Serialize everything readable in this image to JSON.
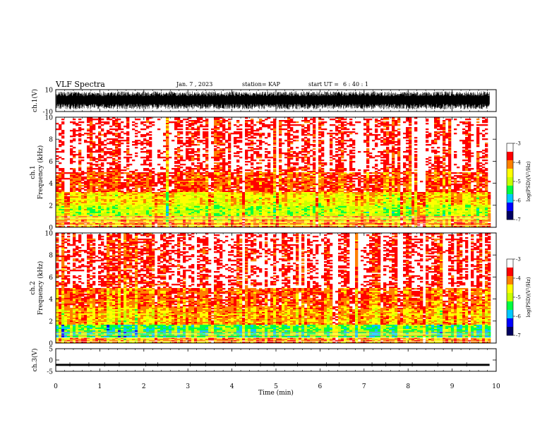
{
  "header": {
    "title": "VLF Spectra",
    "date": "Jan. 7 , 2023",
    "station": "station= KAP",
    "start_label": "start UT =",
    "start_time": "6 : 40 : 1"
  },
  "chart_data": [
    {
      "type": "line",
      "panel": "ch1-waveform",
      "ylabel": "ch.1(V)",
      "ylim": [
        -10,
        10
      ],
      "yticks": [
        "10",
        "-10"
      ],
      "xlim": [
        0,
        10
      ],
      "description_values": "dense noise-like waveform between about -8 and +8 V over 0–9.85 min"
    },
    {
      "type": "heatmap",
      "panel": "ch1-spectrogram",
      "ylabel": "ch.1 Frequency (kHz)",
      "ylim": [
        0,
        10
      ],
      "yticks": [
        "0",
        "2",
        "4",
        "6",
        "8",
        "10"
      ],
      "xlim": [
        0,
        10
      ],
      "data_extent_x": [
        0,
        9.85
      ],
      "log_psd_by_band": [
        {
          "f_khz": [
            0,
            0.6
          ],
          "level": -4.2
        },
        {
          "f_khz": [
            0.6,
            1.0
          ],
          "level": -4.6
        },
        {
          "f_khz": [
            1.0,
            2.0
          ],
          "level": -5.0
        },
        {
          "f_khz": [
            2.0,
            3.2
          ],
          "level": -4.5
        },
        {
          "f_khz": [
            3.2,
            5.0
          ],
          "level": -3.9
        },
        {
          "f_khz": [
            5.0,
            10.0
          ],
          "level": -3.4
        }
      ]
    },
    {
      "type": "heatmap",
      "panel": "ch2-spectrogram",
      "ylabel": "ch.2 Frequency (kHz)",
      "ylim": [
        0,
        10
      ],
      "yticks": [
        "0",
        "2",
        "4",
        "6",
        "8",
        "10"
      ],
      "xlim": [
        0,
        10
      ],
      "data_extent_x": [
        0,
        9.85
      ],
      "log_psd_by_band": [
        {
          "f_khz": [
            0,
            0.5
          ],
          "level": -4.1
        },
        {
          "f_khz": [
            0.5,
            1.7
          ],
          "level": -5.3
        },
        {
          "f_khz": [
            1.7,
            3.2
          ],
          "level": -4.3
        },
        {
          "f_khz": [
            3.2,
            5.0
          ],
          "level": -3.9
        },
        {
          "f_khz": [
            5.0,
            10.0
          ],
          "level": -3.4
        }
      ]
    },
    {
      "type": "line",
      "panel": "ch3-waveform",
      "ylabel": "ch.3(V)",
      "ylim": [
        -5,
        5
      ],
      "yticks": [
        "5",
        "0",
        "-5"
      ],
      "xlim": [
        0,
        10
      ],
      "description_values": "narrow band around -2 V over 0–9.85 min"
    }
  ],
  "x_axis": {
    "label": "Time (min)",
    "ticks": [
      "0",
      "1",
      "2",
      "3",
      "4",
      "5",
      "6",
      "7",
      "8",
      "9",
      "10"
    ]
  },
  "colorbar": {
    "label": "log(PSD)(V²/Hz)",
    "range": [
      -7,
      -3
    ],
    "ticks": [
      "-3",
      "-4",
      "-5",
      "-6",
      "-7"
    ],
    "colors": [
      "#000060",
      "#0000ff",
      "#00c8ff",
      "#00ff40",
      "#c8ff00",
      "#ffff00",
      "#ff8000",
      "#ff0000",
      "#ffffff"
    ]
  }
}
